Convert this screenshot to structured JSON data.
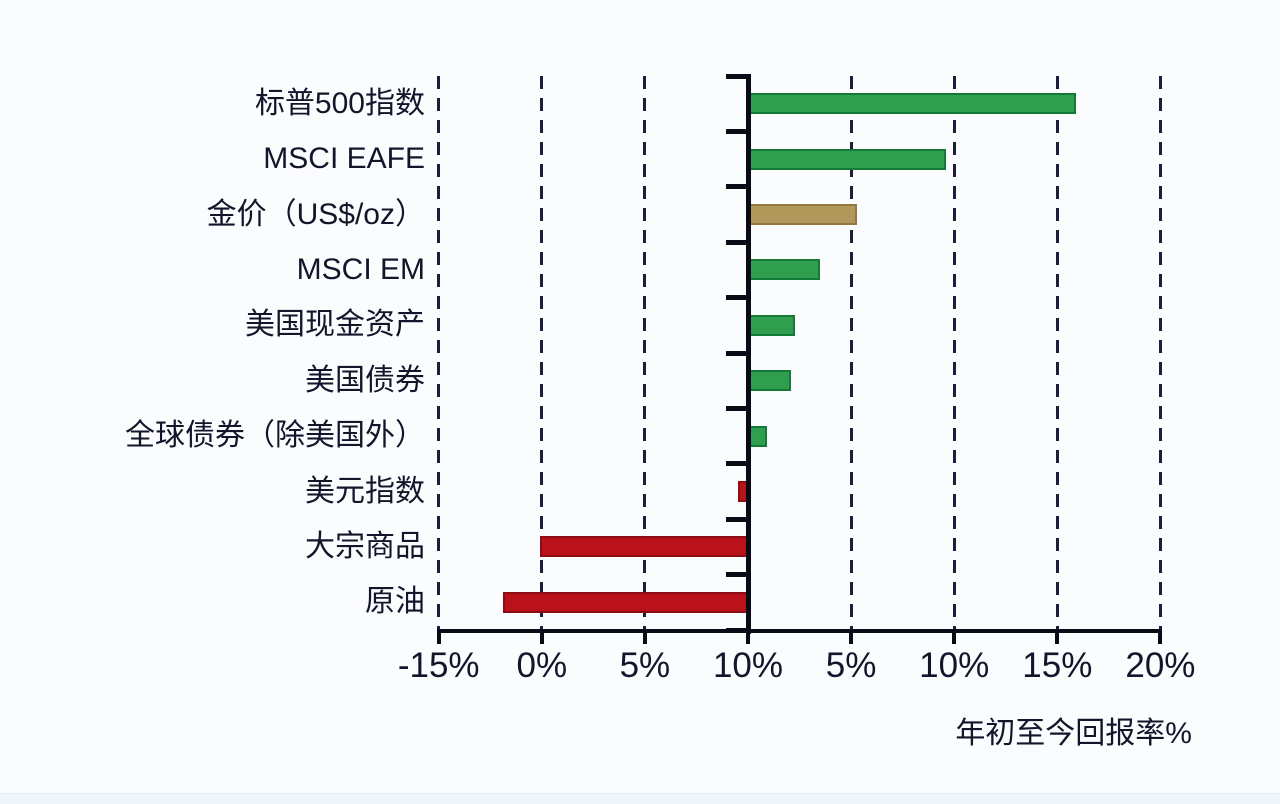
{
  "page": {
    "background_color": "#fbfcfe",
    "footer_strip_color": "#f0f5fa"
  },
  "chart_data": {
    "type": "bar",
    "orientation": "horizontal",
    "title": "",
    "xlabel": "年初至今回报率%",
    "x_tick_labels_as_shown": [
      "-15%",
      "0%",
      "5%",
      "10%",
      "5%",
      "10%",
      "15%",
      "20%"
    ],
    "zero_tick_index": 3,
    "tick_step_pct": 5,
    "x_value_range": [
      -15,
      20
    ],
    "grid": "dashed-vertical",
    "legend": "none",
    "categories": [
      "标普500指数",
      "MSCI EAFE",
      "金价（US$/oz）",
      "MSCI EM",
      "美国现金资产",
      "美国债券",
      "全球债券（除美国外）",
      "美元指数",
      "大宗商品",
      "原油"
    ],
    "series": [
      {
        "label": "标普500指数",
        "value": 15.9,
        "style": "green"
      },
      {
        "label": "MSCI EAFE",
        "value": 9.6,
        "style": "green"
      },
      {
        "label": "金价（US$/oz）",
        "value": 5.3,
        "style": "gold"
      },
      {
        "label": "MSCI EM",
        "value": 3.5,
        "style": "green"
      },
      {
        "label": "美国现金资产",
        "value": 2.3,
        "style": "green"
      },
      {
        "label": "美国债券",
        "value": 2.1,
        "style": "green"
      },
      {
        "label": "全球债券（除美国外）",
        "value": 0.9,
        "style": "green"
      },
      {
        "label": "美元指数",
        "value": -0.5,
        "style": "red"
      },
      {
        "label": "大宗商品",
        "value": -10.1,
        "style": "red"
      },
      {
        "label": "原油",
        "value": -11.9,
        "style": "red"
      }
    ],
    "bar_styles": {
      "green": {
        "fill": "#2f9e4e",
        "edge": "#147a38"
      },
      "gold": {
        "fill": "#b3985c",
        "edge": "#93793f"
      },
      "red": {
        "fill": "#b9121a",
        "edge": "#8c0d13"
      }
    },
    "colors": {
      "gridline": "#1d1d3c",
      "axis": "#0a0a16",
      "text": "#14142b"
    }
  }
}
